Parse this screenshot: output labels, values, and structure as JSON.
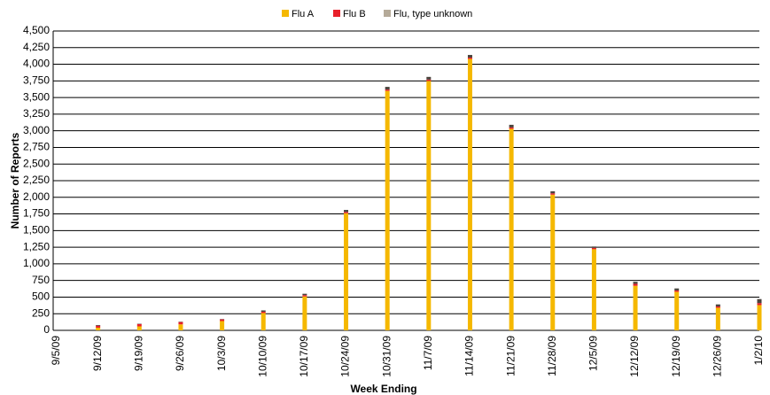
{
  "chart_data": {
    "type": "stacked_bar",
    "x_label": "Week Ending",
    "y_label": "Number of Reports",
    "categories": [
      "9/5/09",
      "9/12/09",
      "9/19/09",
      "9/26/09",
      "10/3/09",
      "10/10/09",
      "10/17/09",
      "10/24/09",
      "10/31/09",
      "11/7/09",
      "11/14/09",
      "11/21/09",
      "11/28/09",
      "12/5/09",
      "12/12/09",
      "12/19/09",
      "12/26/09",
      "1/2/10"
    ],
    "series": [
      {
        "name": "Flu A",
        "color": "#f5b800",
        "values": [
          0,
          40,
          60,
          90,
          140,
          260,
          510,
          1760,
          3600,
          3750,
          4080,
          3030,
          2040,
          1220,
          670,
          580,
          340,
          380
        ]
      },
      {
        "name": "Flu B",
        "color": "#e8202a",
        "values": [
          0,
          30,
          35,
          35,
          25,
          20,
          20,
          20,
          20,
          20,
          20,
          20,
          20,
          20,
          30,
          20,
          20,
          30
        ]
      },
      {
        "name": "Flu, type unknown",
        "color": "#4a433c",
        "values": [
          0,
          10,
          5,
          5,
          5,
          20,
          20,
          30,
          40,
          40,
          40,
          40,
          30,
          20,
          30,
          30,
          30,
          60
        ]
      }
    ],
    "legend_color_unknown": "#b5aa99",
    "ylim": [
      0,
      4500
    ],
    "yticks": [
      0,
      250,
      500,
      750,
      {
        "value": 1000,
        "label": "1,000"
      },
      {
        "value": 1250,
        "label": "1,250"
      },
      {
        "value": 1500,
        "label": "1,500"
      },
      {
        "value": 1750,
        "label": "1,750"
      },
      {
        "value": 2000,
        "label": "2,000"
      },
      {
        "value": 2250,
        "label": "2,250"
      },
      {
        "value": 2500,
        "label": "2,500"
      },
      {
        "value": 2750,
        "label": "2,750"
      },
      {
        "value": 3000,
        "label": "3,000"
      },
      {
        "value": 3250,
        "label": "3,250"
      },
      {
        "value": 3500,
        "label": "3,500"
      },
      {
        "value": 3750,
        "label": "3,750"
      },
      {
        "value": 4000,
        "label": "4,000"
      },
      {
        "value": 4250,
        "label": "4,250"
      },
      {
        "value": 4500,
        "label": "4,500"
      }
    ],
    "grid": true
  }
}
